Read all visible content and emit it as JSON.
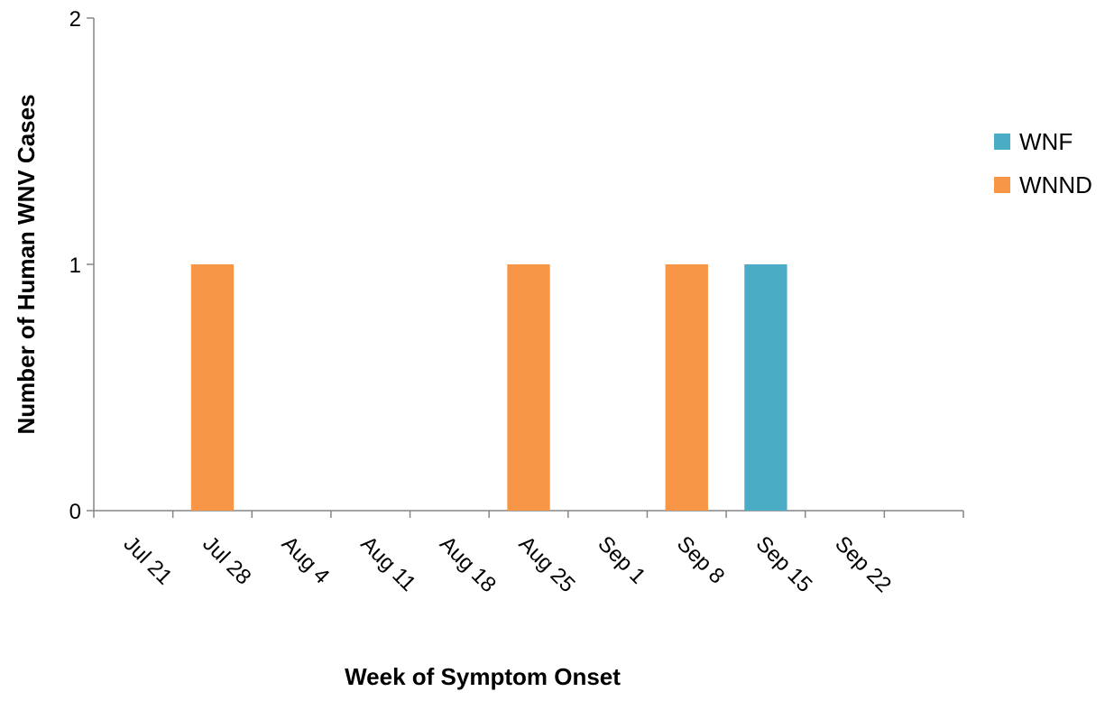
{
  "chart_data": {
    "type": "bar",
    "title": "",
    "xlabel": "Week of Symptom Onset",
    "ylabel": "Number of Human WNV Cases",
    "ylim": [
      0,
      2
    ],
    "yticks": [
      "0",
      "1",
      "2"
    ],
    "categories": [
      "Jul 21",
      "Jul 28",
      "Aug 4",
      "Aug  11",
      "Aug 18",
      "Aug 25",
      "Sep 1",
      "Sep 8",
      "Sep 15",
      "Sep 22",
      ""
    ],
    "series": [
      {
        "name": "WNF",
        "color": "#4bacc6",
        "values": [
          0,
          0,
          0,
          0,
          0,
          0,
          0,
          0,
          1,
          0,
          0
        ]
      },
      {
        "name": "WNND",
        "color": "#f79646",
        "values": [
          0,
          1,
          0,
          0,
          0,
          1,
          0,
          1,
          0,
          0,
          0
        ]
      }
    ],
    "stacked": true,
    "grid": false,
    "legend": "right"
  }
}
